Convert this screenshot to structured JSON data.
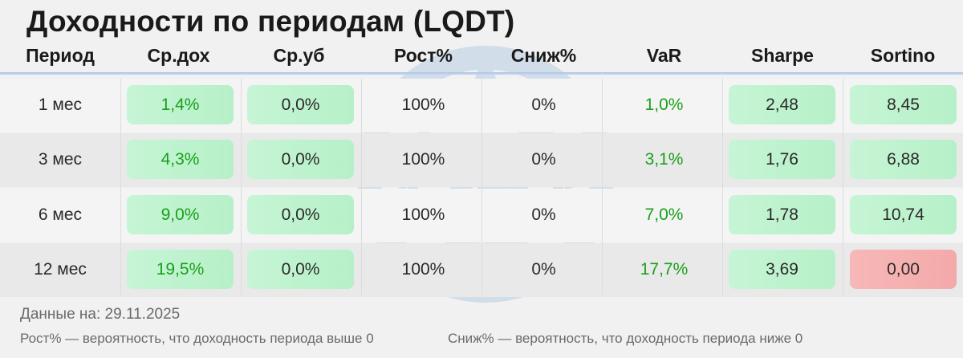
{
  "title": "Доходности по периодам (LQDT)",
  "headers": {
    "period": "Период",
    "avg_gain": "Ср.дох",
    "avg_loss": "Ср.уб",
    "growth": "Рост%",
    "decline": "Сниж%",
    "var": "VaR",
    "sharpe": "Sharpe",
    "sortino": "Sortino"
  },
  "rows": [
    {
      "period": "1 мес",
      "avg_gain": "1,4%",
      "avg_loss": "0,0%",
      "growth": "100%",
      "decline": "0%",
      "var": "1,0%",
      "sharpe": "2,48",
      "sortino": "8,45"
    },
    {
      "period": "3 мес",
      "avg_gain": "4,3%",
      "avg_loss": "0,0%",
      "growth": "100%",
      "decline": "0%",
      "var": "3,1%",
      "sharpe": "1,76",
      "sortino": "6,88"
    },
    {
      "period": "6 мес",
      "avg_gain": "9,0%",
      "avg_loss": "0,0%",
      "growth": "100%",
      "decline": "0%",
      "var": "7,0%",
      "sharpe": "1,78",
      "sortino": "10,74"
    },
    {
      "period": "12 мес",
      "avg_gain": "19,5%",
      "avg_loss": "0,0%",
      "growth": "100%",
      "decline": "0%",
      "var": "17,7%",
      "sharpe": "3,69",
      "sortino": "0,00"
    }
  ],
  "footer": {
    "date": "Данные на: 29.11.2025",
    "note_growth": "Рост% — вероятность, что доходность периода выше 0",
    "note_decline": "Сниж% — вероятность, что доходность периода ниже 0"
  },
  "colors": {
    "positive_bg": "#c6f5d5",
    "negative_bg": "#f7b8b8",
    "positive_text": "#1aa01a",
    "header_rule": "#a9c3e6"
  }
}
